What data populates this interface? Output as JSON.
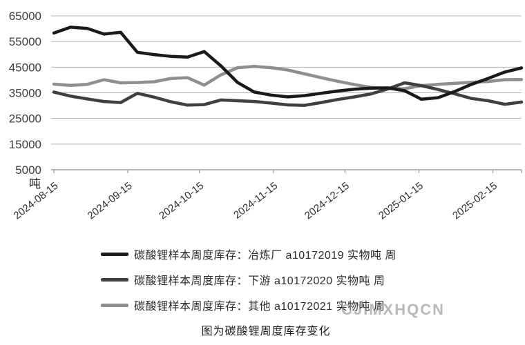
{
  "watermark": {
    "text": "CJIMXHQCN"
  },
  "chart_data": {
    "type": "line",
    "title": "",
    "caption": "图为碳酸锂周度库存变化",
    "unit_label": "吨",
    "ylim": [
      5000,
      65000
    ],
    "y_tick_step": 10000,
    "y_tick_labels": [
      "65000",
      "55000",
      "45000",
      "35000",
      "25000",
      "15000",
      "5000"
    ],
    "x_tick_labels": [
      "2024-08-15",
      "2024-09-15",
      "2024-10-15",
      "2024-11-15",
      "2024-12-15",
      "2025-01-15",
      "2025-02-15"
    ],
    "grid": true,
    "legend_position": "bottom",
    "x": [
      "2024-08-15",
      "2024-08-22",
      "2024-08-29",
      "2024-09-05",
      "2024-09-12",
      "2024-09-19",
      "2024-09-26",
      "2024-10-03",
      "2024-10-10",
      "2024-10-17",
      "2024-10-24",
      "2024-10-31",
      "2024-11-07",
      "2024-11-14",
      "2024-11-21",
      "2024-11-28",
      "2024-12-05",
      "2024-12-12",
      "2024-12-19",
      "2024-12-26",
      "2025-01-02",
      "2025-01-09",
      "2025-01-16",
      "2025-01-23",
      "2025-01-30",
      "2025-02-06",
      "2025-02-13",
      "2025-02-20",
      "2025-02-27"
    ],
    "series": [
      {
        "name": "碳酸锂样本周度库存：冶炼厂 a10172019 实物吨 周",
        "color": "#1a1a1a",
        "values": [
          58300,
          60600,
          60100,
          57900,
          58600,
          50800,
          49900,
          49200,
          48900,
          51100,
          45500,
          39000,
          35300,
          34100,
          33400,
          33900,
          34800,
          35700,
          36400,
          36800,
          36900,
          35800,
          32500,
          33100,
          35500,
          38300,
          40600,
          43100,
          44700
        ]
      },
      {
        "name": "碳酸锂样本周度库存：下游 a10172020 实物吨 周",
        "color": "#404040",
        "values": [
          35300,
          33700,
          32600,
          31600,
          31200,
          34800,
          33300,
          31500,
          30200,
          30400,
          32200,
          31900,
          31600,
          31000,
          30300,
          30100,
          31200,
          32400,
          33400,
          34600,
          36500,
          38900,
          37800,
          36300,
          34600,
          32800,
          31900,
          30500,
          31400
        ]
      },
      {
        "name": "碳酸锂样本周度库存：其他 a10172021 实物吨 周",
        "color": "#8f8f8f",
        "values": [
          38400,
          37900,
          38300,
          40100,
          38900,
          39000,
          39300,
          40600,
          40900,
          38000,
          42000,
          44800,
          45300,
          44800,
          43900,
          42400,
          40900,
          39500,
          38200,
          37100,
          36700,
          36600,
          37800,
          38300,
          38700,
          39100,
          39400,
          40100,
          40200
        ]
      }
    ]
  }
}
